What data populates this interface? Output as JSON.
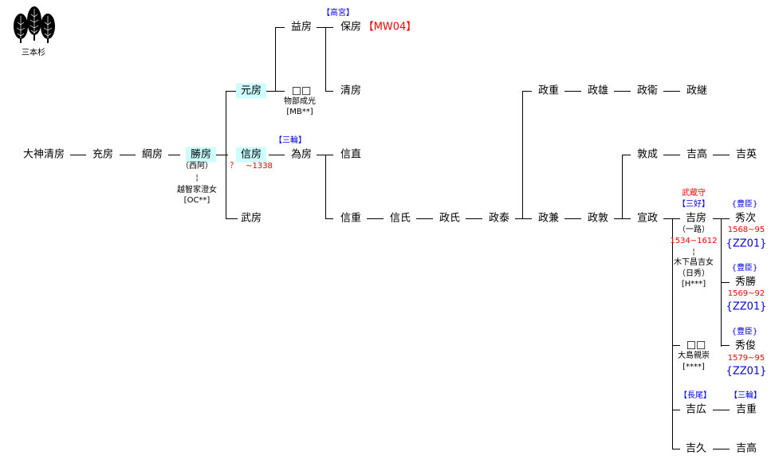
{
  "crest": {
    "label": "三本杉",
    "icon": "three-cedar-trees-crest-icon"
  },
  "colors": {
    "highlight": "#ccffff",
    "clan_tag": "#0000ff",
    "dates": "#ff0000"
  },
  "people": {
    "ogami_kiyofusa": "大神清房",
    "mitsufusa": "充房",
    "tsunafusa": "綱房",
    "katsufusa": "勝房",
    "katsufusa_alias": "（西阿）",
    "katsufusa_marriage": "¦",
    "katsufusa_wife": "越智家澄女",
    "katsufusa_wife_code": "[OC**]",
    "motofusa": "元房",
    "nobufusa": "信房",
    "nobufusa_dates": "？　~1338",
    "takefusa": "武房",
    "masufusa": "益房",
    "unknown1": "□□",
    "unknown1_note": "物部成光",
    "unknown1_code": "[MB**]",
    "tamefusa_clan": "【三輪】",
    "tamefusa": "為房",
    "yasufusa_clan": "【高宮】",
    "yasufusa": "保房",
    "yasufusa_code": "【MW04】",
    "kiyofusa": "清房",
    "nobunao": "信直",
    "nobushige": "信重",
    "nobuuji": "信氏",
    "masauji": "政氏",
    "masayasu": "政泰",
    "masakane": "政兼",
    "masaatsu": "政敦",
    "norimasa": "宣政",
    "masashige": "政重",
    "masao": "政雄",
    "masahira": "政衛",
    "masatsugu": "政継",
    "atsunari": "敦成",
    "yoshitaka1": "吉高",
    "yoshihide": "吉英",
    "yoshifusa_title": "武蔵守",
    "yoshifusa_clan": "【三好】",
    "yoshifusa": "吉房",
    "yoshifusa_alias": "（一路）",
    "yoshifusa_dates": "1534~1612",
    "yoshifusa_marriage": "¦",
    "yoshifusa_wife": "木下昌吉女",
    "yoshifusa_wife_alias": "（日秀）",
    "yoshifusa_wife_code": "[H***]",
    "hidetsugu_clan": "{豊臣}",
    "hidetsugu": "秀次",
    "hidetsugu_dates": "1568~95",
    "hidetsugu_code": "{ZZ01}",
    "hidekatsu_clan": "{豊臣}",
    "hidekatsu": "秀勝",
    "hidekatsu_dates": "1569~92",
    "hidekatsu_code": "{ZZ01}",
    "hidetoshi_clan": "{豊臣}",
    "hidetoshi": "秀俊",
    "hidetoshi_dates": "1579~95",
    "hidetoshi_code": "{ZZ01}",
    "unknown2": "□□",
    "unknown2_note": "大島親崇",
    "unknown2_code": "[****]",
    "yoshihiro_clan": "【長尾】",
    "yoshihiro": "吉広",
    "yoshishige_clan": "【三輪】",
    "yoshishige": "吉重",
    "yoshihisa": "吉久",
    "yoshitaka2": "吉高"
  }
}
